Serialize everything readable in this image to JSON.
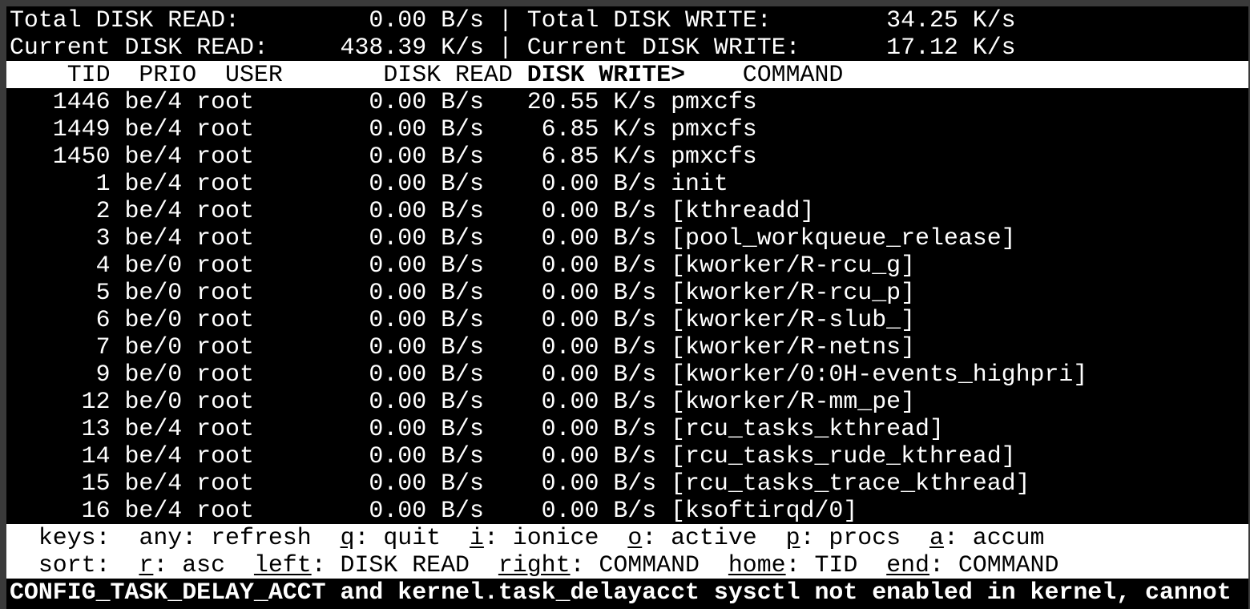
{
  "summary": [
    {
      "left_label": "Total DISK READ:",
      "left_value": "0.00 B/s",
      "right_label": "Total DISK WRITE:",
      "right_value": "34.25 K/s"
    },
    {
      "left_label": "Current DISK READ:",
      "left_value": "438.39 K/s",
      "right_label": "Current DISK WRITE:",
      "right_value": "17.12 K/s"
    }
  ],
  "columns": {
    "tid": "TID",
    "prio": "PRIO",
    "user": "USER",
    "read": "DISK READ",
    "write": "DISK WRITE>",
    "command": "COMMAND"
  },
  "rows": [
    {
      "tid": "1446",
      "prio": "be/4",
      "user": "root",
      "read": "0.00 B/s",
      "write": "20.55 K/s",
      "command": "pmxcfs"
    },
    {
      "tid": "1449",
      "prio": "be/4",
      "user": "root",
      "read": "0.00 B/s",
      "write": "6.85 K/s",
      "command": "pmxcfs"
    },
    {
      "tid": "1450",
      "prio": "be/4",
      "user": "root",
      "read": "0.00 B/s",
      "write": "6.85 K/s",
      "command": "pmxcfs"
    },
    {
      "tid": "1",
      "prio": "be/4",
      "user": "root",
      "read": "0.00 B/s",
      "write": "0.00 B/s",
      "command": "init"
    },
    {
      "tid": "2",
      "prio": "be/4",
      "user": "root",
      "read": "0.00 B/s",
      "write": "0.00 B/s",
      "command": "[kthreadd]"
    },
    {
      "tid": "3",
      "prio": "be/4",
      "user": "root",
      "read": "0.00 B/s",
      "write": "0.00 B/s",
      "command": "[pool_workqueue_release]"
    },
    {
      "tid": "4",
      "prio": "be/0",
      "user": "root",
      "read": "0.00 B/s",
      "write": "0.00 B/s",
      "command": "[kworker/R-rcu_g]"
    },
    {
      "tid": "5",
      "prio": "be/0",
      "user": "root",
      "read": "0.00 B/s",
      "write": "0.00 B/s",
      "command": "[kworker/R-rcu_p]"
    },
    {
      "tid": "6",
      "prio": "be/0",
      "user": "root",
      "read": "0.00 B/s",
      "write": "0.00 B/s",
      "command": "[kworker/R-slub_]"
    },
    {
      "tid": "7",
      "prio": "be/0",
      "user": "root",
      "read": "0.00 B/s",
      "write": "0.00 B/s",
      "command": "[kworker/R-netns]"
    },
    {
      "tid": "9",
      "prio": "be/0",
      "user": "root",
      "read": "0.00 B/s",
      "write": "0.00 B/s",
      "command": "[kworker/0:0H-events_highpri]"
    },
    {
      "tid": "12",
      "prio": "be/0",
      "user": "root",
      "read": "0.00 B/s",
      "write": "0.00 B/s",
      "command": "[kworker/R-mm_pe]"
    },
    {
      "tid": "13",
      "prio": "be/4",
      "user": "root",
      "read": "0.00 B/s",
      "write": "0.00 B/s",
      "command": "[rcu_tasks_kthread]"
    },
    {
      "tid": "14",
      "prio": "be/4",
      "user": "root",
      "read": "0.00 B/s",
      "write": "0.00 B/s",
      "command": "[rcu_tasks_rude_kthread]"
    },
    {
      "tid": "15",
      "prio": "be/4",
      "user": "root",
      "read": "0.00 B/s",
      "write": "0.00 B/s",
      "command": "[rcu_tasks_trace_kthread]"
    },
    {
      "tid": "16",
      "prio": "be/4",
      "user": "root",
      "read": "0.00 B/s",
      "write": "0.00 B/s",
      "command": "[ksoftirqd/0]"
    }
  ],
  "keys": {
    "label": "keys:",
    "items": [
      {
        "key": "any",
        "desc": "refresh",
        "underline": false
      },
      {
        "key": "q",
        "desc": "quit",
        "underline": true
      },
      {
        "key": "i",
        "desc": "ionice",
        "underline": true
      },
      {
        "key": "o",
        "desc": "active",
        "underline": true
      },
      {
        "key": "p",
        "desc": "procs",
        "underline": true
      },
      {
        "key": "a",
        "desc": "accum",
        "underline": true
      }
    ]
  },
  "sort": {
    "label": "sort:",
    "items": [
      {
        "key": "r",
        "desc": "asc",
        "underline": true
      },
      {
        "key": "left",
        "desc": "DISK READ",
        "underline": true
      },
      {
        "key": "right",
        "desc": "COMMAND",
        "underline": true
      },
      {
        "key": "home",
        "desc": "TID",
        "underline": true
      },
      {
        "key": "end",
        "desc": "COMMAND",
        "underline": true
      }
    ]
  },
  "status_message": "CONFIG_TASK_DELAY_ACCT and kernel.task_delayacct sysctl not enabled in kernel, cannot",
  "colors": {
    "background": "#000000",
    "foreground": "#ffffff",
    "frame": "#3a3a3a"
  }
}
